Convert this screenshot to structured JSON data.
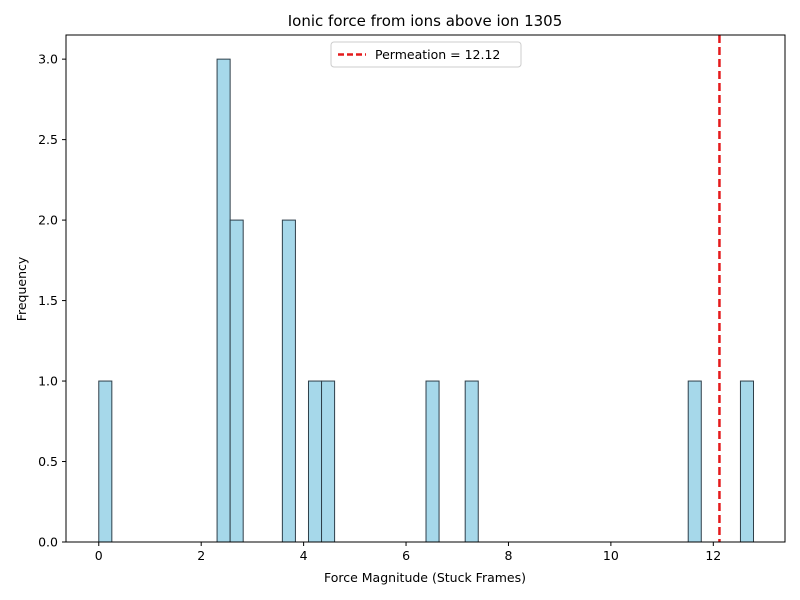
{
  "chart_data": {
    "type": "bar",
    "title": "Ionic force from ions above ion 1305",
    "xlabel": "Force Magnitude (Stuck Frames)",
    "ylabel": "Frequency",
    "xlim": [
      -0.64,
      13.4
    ],
    "ylim": [
      0,
      3.15
    ],
    "xticks": [
      0,
      2,
      4,
      6,
      8,
      10,
      12
    ],
    "xtick_labels": [
      "0",
      "2",
      "4",
      "6",
      "8",
      "10",
      "12"
    ],
    "yticks": [
      0.0,
      0.5,
      1.0,
      1.5,
      2.0,
      2.5,
      3.0
    ],
    "ytick_labels": [
      "0.0",
      "0.5",
      "1.0",
      "1.5",
      "2.0",
      "2.5",
      "3.0"
    ],
    "bin_width": 0.255,
    "bins": [
      {
        "x_start": 0.0,
        "count": 1
      },
      {
        "x_start": 2.31,
        "count": 3
      },
      {
        "x_start": 2.565,
        "count": 2
      },
      {
        "x_start": 3.585,
        "count": 2
      },
      {
        "x_start": 4.095,
        "count": 1
      },
      {
        "x_start": 4.35,
        "count": 1
      },
      {
        "x_start": 6.39,
        "count": 1
      },
      {
        "x_start": 7.155,
        "count": 1
      },
      {
        "x_start": 11.51,
        "count": 1
      },
      {
        "x_start": 12.53,
        "count": 1
      }
    ],
    "bar_fill": "#a6d8ea",
    "bar_edge": "#2f3f4a",
    "reference_line": {
      "x": 12.12,
      "color": "#e41a1c",
      "style": "dashed"
    },
    "legend": {
      "position": "top-center",
      "entries": [
        "Permeation = 12.12"
      ]
    },
    "grid": false
  }
}
